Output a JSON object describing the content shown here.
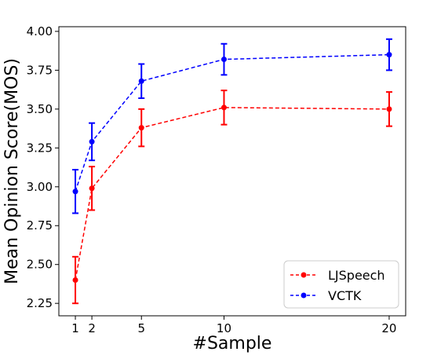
{
  "chart_data": {
    "type": "line",
    "title": "",
    "xlabel": "#Sample",
    "ylabel": "Mean Opinion Score(MOS)",
    "x": [
      1,
      2,
      5,
      10,
      20
    ],
    "xticks": [
      "1",
      "2",
      "5",
      "10",
      "20"
    ],
    "yticks": [
      "2.25",
      "2.50",
      "2.75",
      "3.00",
      "3.25",
      "3.50",
      "3.75",
      "4.00"
    ],
    "xlim": [
      0,
      21
    ],
    "ylim": [
      2.17,
      4.03
    ],
    "grid": false,
    "legend_position": "bottom-right",
    "series": [
      {
        "name": "LJSpeech",
        "color": "#ff0000",
        "linestyle": "dashed",
        "values": [
          2.4,
          2.99,
          3.38,
          3.51,
          3.5
        ],
        "error": [
          0.15,
          0.14,
          0.12,
          0.11,
          0.11
        ]
      },
      {
        "name": "VCTK",
        "color": "#0000ff",
        "linestyle": "dashed",
        "values": [
          2.97,
          3.29,
          3.68,
          3.82,
          3.85
        ],
        "error": [
          0.14,
          0.12,
          0.11,
          0.1,
          0.1
        ]
      }
    ]
  }
}
